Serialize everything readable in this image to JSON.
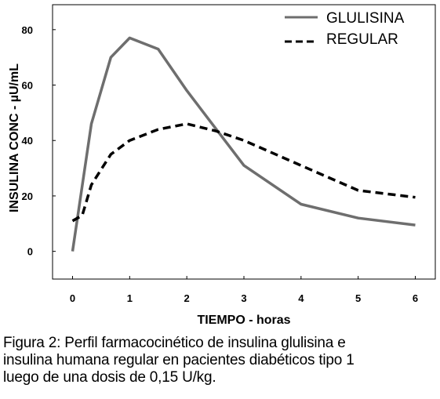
{
  "chart_data": {
    "type": "line",
    "xlabel": "TIEMPO - horas",
    "ylabel": "INSULINA CONC - µU/mL",
    "x_ticks": [
      "0",
      "1",
      "2",
      "3",
      "4",
      "5",
      "6"
    ],
    "y_ticks": [
      "0",
      "20",
      "40",
      "60",
      "80"
    ],
    "xlim": [
      -0.35,
      6.35
    ],
    "ylim": [
      -10,
      89
    ],
    "legend_position": "top-right",
    "series": [
      {
        "name": "GLULISINA",
        "style": "solid",
        "color": "#6e6e6e",
        "x": [
          0,
          0.33,
          0.67,
          1,
          1.5,
          2,
          3,
          4,
          5,
          6
        ],
        "y": [
          0,
          46,
          70,
          77,
          73,
          58,
          31,
          17,
          12,
          9.5
        ]
      },
      {
        "name": "REGULAR",
        "style": "dashed",
        "color": "#000000",
        "x": [
          0,
          0.17,
          0.33,
          0.67,
          1,
          1.5,
          2,
          2.5,
          3,
          4,
          5,
          6
        ],
        "y": [
          11,
          13,
          24,
          35,
          40,
          44,
          46,
          43.5,
          40,
          31,
          22,
          19.5
        ]
      }
    ]
  },
  "caption": {
    "line1": "Figura 2: Perfil farmacocinético de insulina glulisina e",
    "line2": "insulina humana regular en pacientes  diabéticos tipo 1",
    "line3": "luego de una dosis de 0,15 U/kg."
  }
}
